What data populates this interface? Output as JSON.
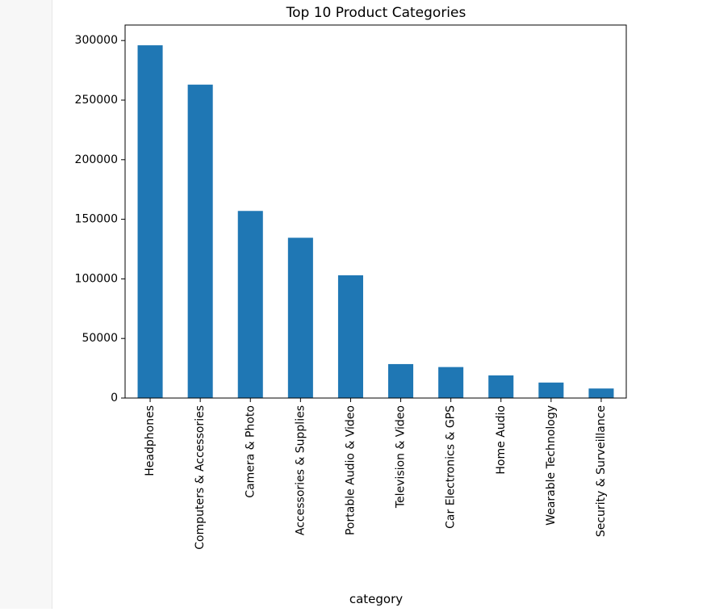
{
  "chart_data": {
    "type": "bar",
    "title": "Top 10 Product Categories",
    "xlabel": "category",
    "ylabel": "",
    "categories": [
      "Headphones",
      "Computers & Accessories",
      "Camera & Photo",
      "Accessories & Supplies",
      "Portable Audio & Video",
      "Television & Video",
      "Car Electronics & GPS",
      "Home Audio",
      "Wearable Technology",
      "Security & Surveillance"
    ],
    "values": [
      296000,
      263000,
      157000,
      134500,
      103000,
      28500,
      26000,
      19000,
      13000,
      8000
    ],
    "ylim": [
      0,
      313000
    ],
    "yticks": [
      0,
      50000,
      100000,
      150000,
      200000,
      250000,
      300000
    ],
    "bar_color": "#1f77b4",
    "grid": false,
    "legend": "none"
  }
}
